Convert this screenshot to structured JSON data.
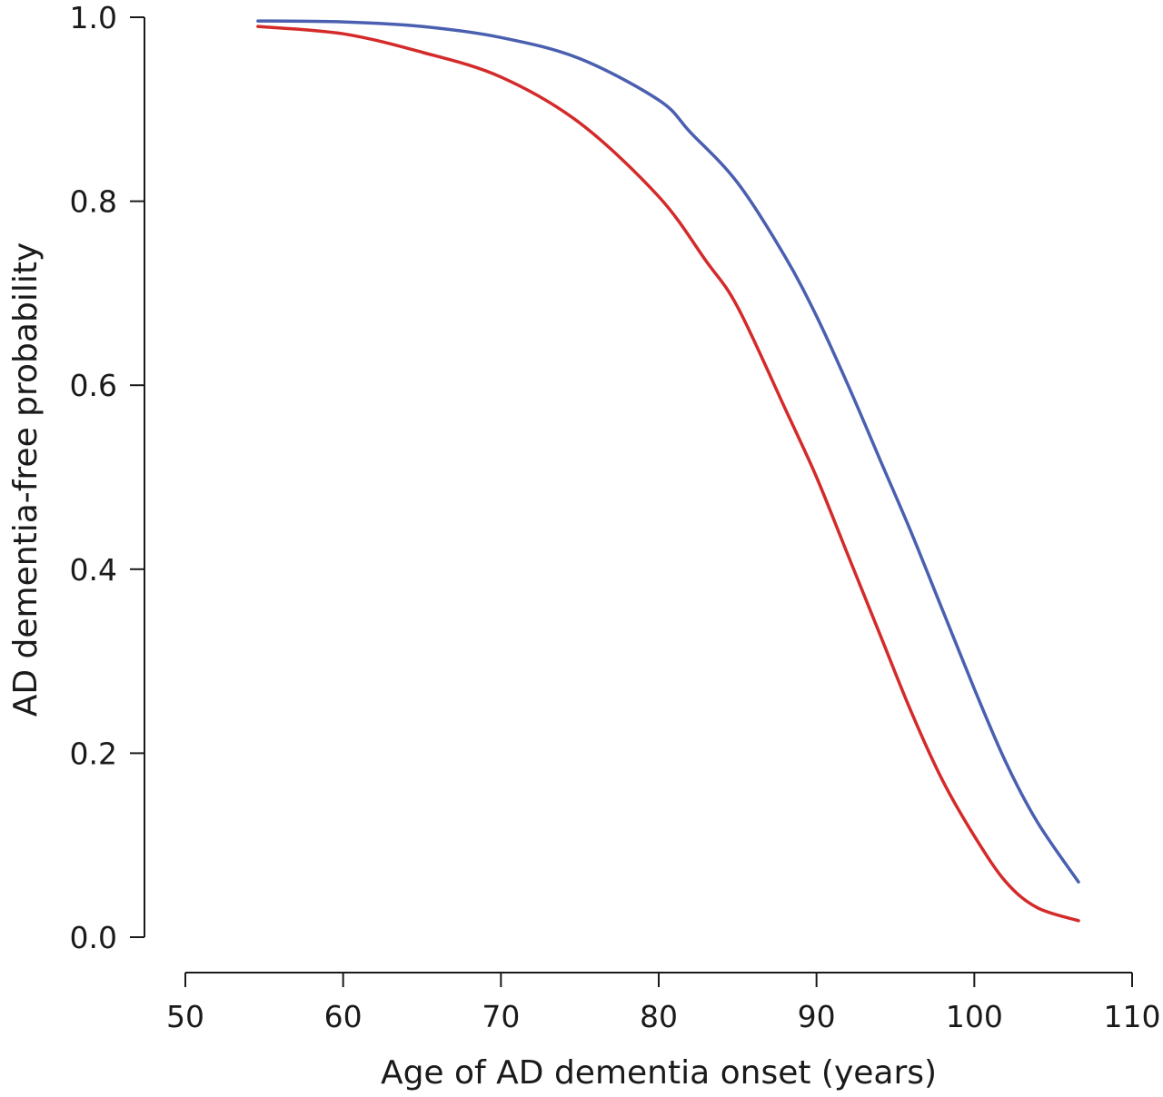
{
  "chart_data": {
    "type": "line",
    "title": "",
    "xlabel": "Age of AD dementia onset (years)",
    "ylabel": "AD dementia-free probability",
    "xlim": [
      50,
      110
    ],
    "ylim": [
      0.0,
      1.0
    ],
    "x_ticks": [
      50,
      60,
      70,
      80,
      90,
      100,
      110
    ],
    "x_tick_labels": [
      "50",
      "60",
      "70",
      "80",
      "90",
      "100",
      "110"
    ],
    "y_ticks": [
      0.0,
      0.2,
      0.4,
      0.6,
      0.8,
      1.0
    ],
    "y_tick_labels": [
      "0.0",
      "0.2",
      "0.4",
      "0.6",
      "0.8",
      "1.0"
    ],
    "grid": false,
    "legend": "none",
    "series": [
      {
        "color": "#4a5fb0",
        "x": [
          54.6,
          60,
          65,
          70,
          75,
          80,
          82,
          85,
          88,
          90,
          92,
          94,
          96,
          98,
          100,
          102,
          104,
          106.6
        ],
        "y": [
          0.996,
          0.995,
          0.99,
          0.978,
          0.955,
          0.91,
          0.875,
          0.82,
          0.74,
          0.675,
          0.6,
          0.52,
          0.44,
          0.355,
          0.27,
          0.19,
          0.125,
          0.06
        ]
      },
      {
        "color": "#d42a2a",
        "x": [
          54.6,
          60,
          65,
          70,
          75,
          80,
          83,
          85,
          88,
          90,
          92,
          94,
          96,
          98,
          100,
          102,
          104,
          106.6
        ],
        "y": [
          0.99,
          0.982,
          0.962,
          0.935,
          0.885,
          0.805,
          0.735,
          0.685,
          0.575,
          0.5,
          0.415,
          0.33,
          0.245,
          0.17,
          0.11,
          0.06,
          0.032,
          0.018
        ]
      }
    ]
  }
}
